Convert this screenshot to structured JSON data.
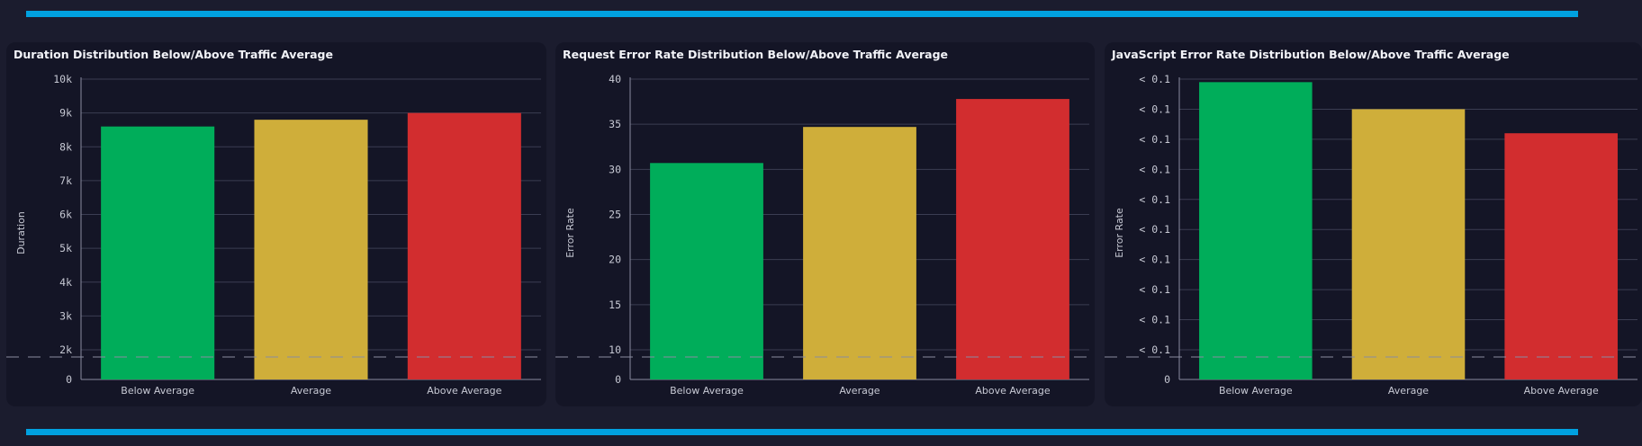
{
  "colors": {
    "accent": "#00a1e0",
    "below": "#00ad5a",
    "average": "#cfae3a",
    "above": "#d22d2f"
  },
  "chart_data": [
    {
      "type": "bar",
      "title": "Duration Distribution Below/Above Traffic Average",
      "ylabel": "Duration",
      "xlabel": "",
      "categories": [
        "Below Average",
        "Average",
        "Above Average"
      ],
      "values": [
        8600,
        8800,
        9000
      ],
      "ylim": [
        0,
        10000
      ],
      "yticks": [
        0,
        2000,
        3000,
        4000,
        5000,
        6000,
        7000,
        8000,
        9000,
        10000
      ],
      "ytick_labels": [
        "0",
        "2k",
        "3k",
        "4k",
        "5k",
        "6k",
        "7k",
        "8k",
        "9k",
        "10k"
      ],
      "axis_break": true,
      "grid": true
    },
    {
      "type": "bar",
      "title": "Request Error Rate Distribution Below/Above Traffic Average",
      "ylabel": "Error Rate",
      "xlabel": "",
      "categories": [
        "Below Average",
        "Average",
        "Above Average"
      ],
      "values": [
        30.7,
        34.7,
        37.8
      ],
      "ylim": [
        0,
        40
      ],
      "yticks": [
        0,
        10,
        15,
        20,
        25,
        30,
        35,
        40
      ],
      "ytick_labels": [
        "0",
        "10",
        "15",
        "20",
        "25",
        "30",
        "35",
        "40"
      ],
      "axis_break": true,
      "grid": true
    },
    {
      "type": "bar",
      "title": "JavaScript Error Rate Distribution Below/Above Traffic Average",
      "ylabel": "Error Rate",
      "xlabel": "",
      "categories": [
        "Below Average",
        "Average",
        "Above Average"
      ],
      "values": [
        0.099,
        0.09,
        0.082
      ],
      "ylim": [
        0,
        0.1
      ],
      "yticks": [
        0,
        0.01,
        0.02,
        0.03,
        0.04,
        0.05,
        0.06,
        0.07,
        0.08,
        0.09,
        0.1
      ],
      "ytick_labels": [
        "0",
        "< 0.1",
        "< 0.1",
        "< 0.1",
        "< 0.1",
        "< 0.1",
        "< 0.1",
        "< 0.1",
        "< 0.1",
        "< 0.1",
        "< 0.1"
      ],
      "axis_break": true,
      "grid": true
    }
  ]
}
